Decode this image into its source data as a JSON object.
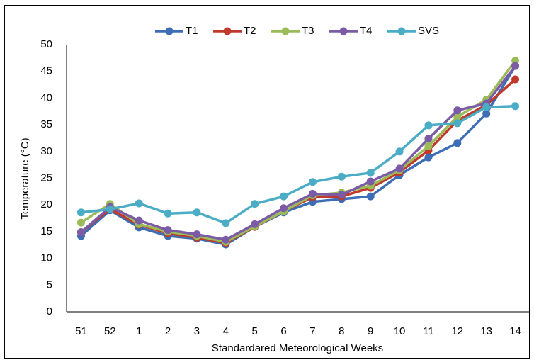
{
  "chart_data": {
    "type": "line",
    "x_label": "Standardared Meteorological Weeks",
    "y_label": "Temperature (°C)",
    "categories": [
      "51",
      "52",
      "1",
      "2",
      "3",
      "4",
      "5",
      "6",
      "7",
      "8",
      "9",
      "10",
      "11",
      "12",
      "13",
      "14"
    ],
    "ylim": [
      0,
      50
    ],
    "yticks": [
      0,
      5,
      10,
      15,
      20,
      25,
      30,
      35,
      40,
      45,
      50
    ],
    "grid": false,
    "legend": "top",
    "series": [
      {
        "name": "T1",
        "color": "#3d6db5",
        "values": [
          14.2,
          19.0,
          15.8,
          14.2,
          13.7,
          12.6,
          15.9,
          18.6,
          20.6,
          21.1,
          21.6,
          25.6,
          28.9,
          31.6,
          37.1,
          46.0
        ]
      },
      {
        "name": "T2",
        "color": "#c0392b",
        "values": [
          14.9,
          19.2,
          16.3,
          14.7,
          13.9,
          12.9,
          15.9,
          18.8,
          21.5,
          21.6,
          23.2,
          26.1,
          30.2,
          35.8,
          38.7,
          43.5
        ]
      },
      {
        "name": "T3",
        "color": "#9bbb59",
        "values": [
          16.7,
          20.2,
          16.4,
          15.0,
          14.2,
          13.1,
          16.0,
          18.8,
          21.8,
          22.3,
          23.6,
          26.5,
          31.0,
          36.5,
          39.7,
          47.0
        ]
      },
      {
        "name": "T4",
        "color": "#7b5ba6",
        "values": [
          14.9,
          19.6,
          17.1,
          15.3,
          14.5,
          13.5,
          16.4,
          19.4,
          22.1,
          21.9,
          24.4,
          26.8,
          32.4,
          37.7,
          39.0,
          46.0
        ]
      },
      {
        "name": "SVS",
        "color": "#4bacc6",
        "values": [
          18.6,
          19.2,
          20.3,
          18.4,
          18.6,
          16.6,
          20.2,
          21.6,
          24.3,
          25.3,
          26.0,
          30.0,
          34.9,
          35.3,
          38.3,
          38.5
        ]
      }
    ]
  }
}
